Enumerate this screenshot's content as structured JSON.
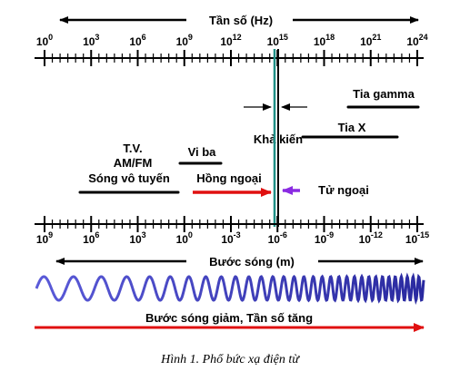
{
  "top_axis": {
    "title": "Tần số (Hz)",
    "ticks": [
      {
        "base": "10",
        "exp": "0"
      },
      {
        "base": "10",
        "exp": "3"
      },
      {
        "base": "10",
        "exp": "6"
      },
      {
        "base": "10",
        "exp": "9"
      },
      {
        "base": "10",
        "exp": "12"
      },
      {
        "base": "10",
        "exp": "15"
      },
      {
        "base": "10",
        "exp": "18"
      },
      {
        "base": "10",
        "exp": "21"
      },
      {
        "base": "10",
        "exp": "24"
      }
    ]
  },
  "bottom_axis": {
    "title": "Bước sóng (m)",
    "ticks": [
      {
        "base": "10",
        "exp": "9"
      },
      {
        "base": "10",
        "exp": "6"
      },
      {
        "base": "10",
        "exp": "3"
      },
      {
        "base": "10",
        "exp": "0"
      },
      {
        "base": "10",
        "exp": "-3"
      },
      {
        "base": "10",
        "exp": "-6"
      },
      {
        "base": "10",
        "exp": "-9"
      },
      {
        "base": "10",
        "exp": "-12"
      },
      {
        "base": "10",
        "exp": "-15"
      }
    ]
  },
  "regions": {
    "gamma": "Tia gamma",
    "xray": "Tia X",
    "visible": "Khả kiến",
    "microwave": "Vi ba",
    "infrared": "Hồng ngoại",
    "ultraviolet": "Tử ngoại",
    "tv": "T.V.",
    "amfm": "AM/FM",
    "radio": "Sóng vô tuyến"
  },
  "bottom_arrow_label": "Bước sóng giảm, Tần số tăng",
  "caption": "Hình 1. Phổ bức xạ điện từ",
  "colors": {
    "axis": "#000000",
    "visible_line_1": "#1f8f86",
    "visible_line_2": "#000000",
    "infrared_arrow": "#e01010",
    "ultraviolet_arrow": "#8a2be2",
    "wave": "#3b3bb8",
    "bottom_arrow": "#e01010"
  }
}
